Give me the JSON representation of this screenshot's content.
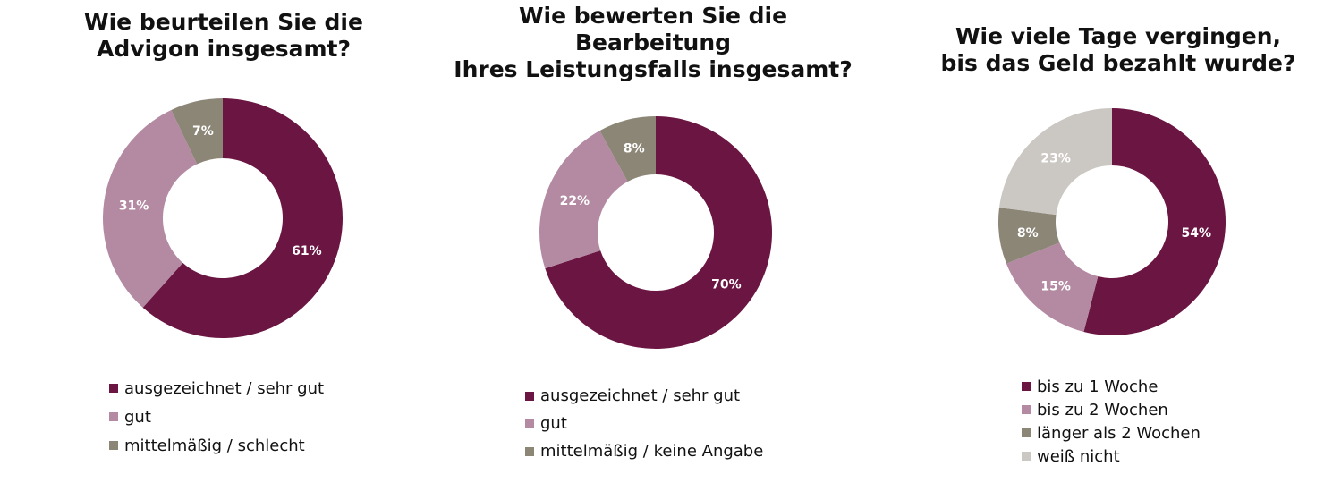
{
  "colors": {
    "dark": "#6B1542",
    "mauve": "#B48AA3",
    "taupe": "#8C8677",
    "lightgray": "#CBC7C2"
  },
  "chart_data": [
    {
      "type": "pie",
      "variant": "donut",
      "title": "Wie beurteilen Sie die Advigon insgesamt?",
      "title_lines": [
        "Wie beurteilen Sie die",
        "Advigon insgesamt?"
      ],
      "categories": [
        "ausgezeichnet / sehr gut",
        "gut",
        "mittelmäßig / schlecht"
      ],
      "values": [
        61,
        31,
        7
      ],
      "labels": [
        "61%",
        "31%",
        "7%"
      ],
      "colors": [
        "#6B1542",
        "#B48AA3",
        "#8C8677"
      ],
      "legend_position": "bottom"
    },
    {
      "type": "pie",
      "variant": "donut",
      "title": "Wie bewerten Sie die Bearbeitung Ihres Leistungsfalls insgesamt?",
      "title_lines": [
        "Wie bewerten Sie die",
        "Bearbeitung",
        "Ihres Leistungsfalls insgesamt?"
      ],
      "categories": [
        "ausgezeichnet / sehr gut",
        "gut",
        "mittelmäßig / keine Angabe"
      ],
      "values": [
        70,
        22,
        8
      ],
      "labels": [
        "70%",
        "22%",
        "8%"
      ],
      "colors": [
        "#6B1542",
        "#B48AA3",
        "#8C8677"
      ],
      "legend_position": "bottom"
    },
    {
      "type": "pie",
      "variant": "donut",
      "title": "Wie viele Tage vergingen, bis das Geld bezahlt wurde?",
      "title_lines": [
        "Wie viele Tage vergingen,",
        "bis das Geld bezahlt wurde?"
      ],
      "categories": [
        "bis zu 1 Woche",
        "bis zu 2 Wochen",
        "länger als 2 Wochen",
        "weiß nicht"
      ],
      "values": [
        54,
        15,
        8,
        23
      ],
      "labels": [
        "54%",
        "15%",
        "8%",
        "23%"
      ],
      "colors": [
        "#6B1542",
        "#B48AA3",
        "#8C8677",
        "#CBC7C2"
      ],
      "legend_position": "bottom"
    }
  ]
}
